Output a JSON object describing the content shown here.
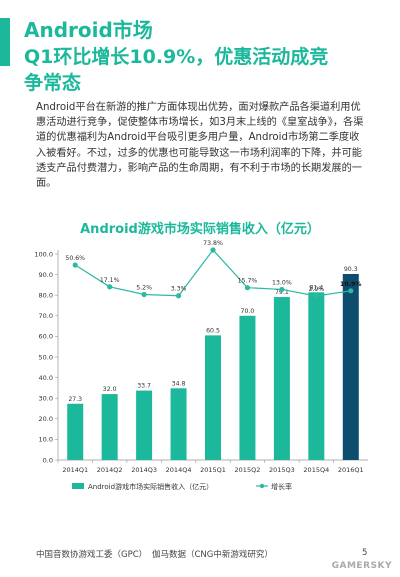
{
  "header": {
    "line1": "Android市场",
    "line2": "Q1环比增长10.9%，优惠活动成竞",
    "line3": "争常态"
  },
  "paragraph": "Android平台在新游的推广方面体现出优势，面对爆款产品各渠道利用优惠活动进行竞争，促使整体市场增长，如3月末上线的《皇室战争》，各渠道的优惠福利为Android平台吸引更多用户量，Android市场第二季度收入被看好。不过，过多的优惠也可能导致这一市场利润率的下降，并可能透支产品付费潜力，影响产品的生命周期，有不利于市场的长期发展的一面。",
  "colors": {
    "accent": "#1bb89b",
    "highlight": "#0e4d6e",
    "line": "#2bb8a4",
    "text": "#333333"
  },
  "chart_data": {
    "type": "bar",
    "title": "Android游戏市场实际销售收入（亿元）",
    "categories": [
      "2014Q1",
      "2014Q2",
      "2014Q3",
      "2014Q4",
      "2015Q1",
      "2015Q2",
      "2015Q3",
      "2015Q4",
      "2016Q1"
    ],
    "series": [
      {
        "name": "Android游戏市场实际销售收入（亿元）",
        "type": "bar",
        "values": [
          27.3,
          32.0,
          33.7,
          34.8,
          60.5,
          70.0,
          79.1,
          81.4,
          90.3
        ],
        "labels": [
          "27.3",
          "32.0",
          "33.7",
          "34.8",
          "60.5",
          "70.0",
          "79.1",
          "81.4",
          "90.3"
        ]
      },
      {
        "name": "增长率",
        "type": "line",
        "values": [
          50.6,
          17.1,
          5.2,
          3.3,
          73.8,
          15.7,
          13.0,
          2.9,
          10.9
        ],
        "labels": [
          "50.6%",
          "17.1%",
          "5.2%",
          "3.3%",
          "73.8%",
          "15.7%",
          "13.0%",
          "2.9%",
          "10.9%"
        ]
      }
    ],
    "yticks": [
      "0.0",
      "10.0",
      "20.0",
      "30.0",
      "40.0",
      "50.0",
      "60.0",
      "70.0",
      "80.0",
      "90.0",
      "100.0"
    ],
    "ylim": [
      0,
      100
    ],
    "highlight_index": 8,
    "legend_position": "bottom"
  },
  "footer": {
    "source1": "中国音数协游戏工委（GPC）",
    "source2": "伽马数据（CNG中新游戏研究）",
    "page": "5",
    "watermark": "GAMERSKY"
  }
}
